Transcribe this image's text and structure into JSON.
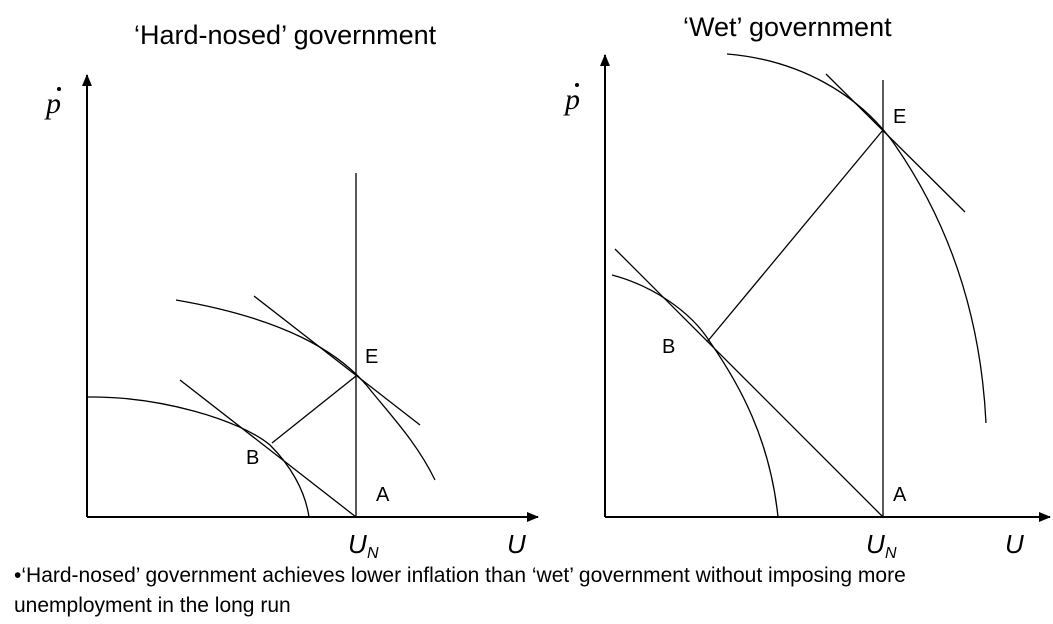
{
  "left_panel": {
    "title": "‘Hard-nosed’ government",
    "y_axis_symbol": "p",
    "x_axis_label": "U",
    "natural_rate_label": "U",
    "natural_rate_subscript": "N",
    "points": {
      "A": "A",
      "B": "B",
      "E": "E"
    }
  },
  "right_panel": {
    "title": "‘Wet’ government",
    "y_axis_symbol": "p",
    "x_axis_label": "U",
    "natural_rate_label": "U",
    "natural_rate_subscript": "N",
    "points": {
      "A": "A",
      "B": "B",
      "E": "E"
    }
  },
  "caption": {
    "bullet": "•",
    "text": "‘Hard-nosed’ government achieves lower inflation than ‘wet’ government without imposing more unemployment in the long run"
  }
}
